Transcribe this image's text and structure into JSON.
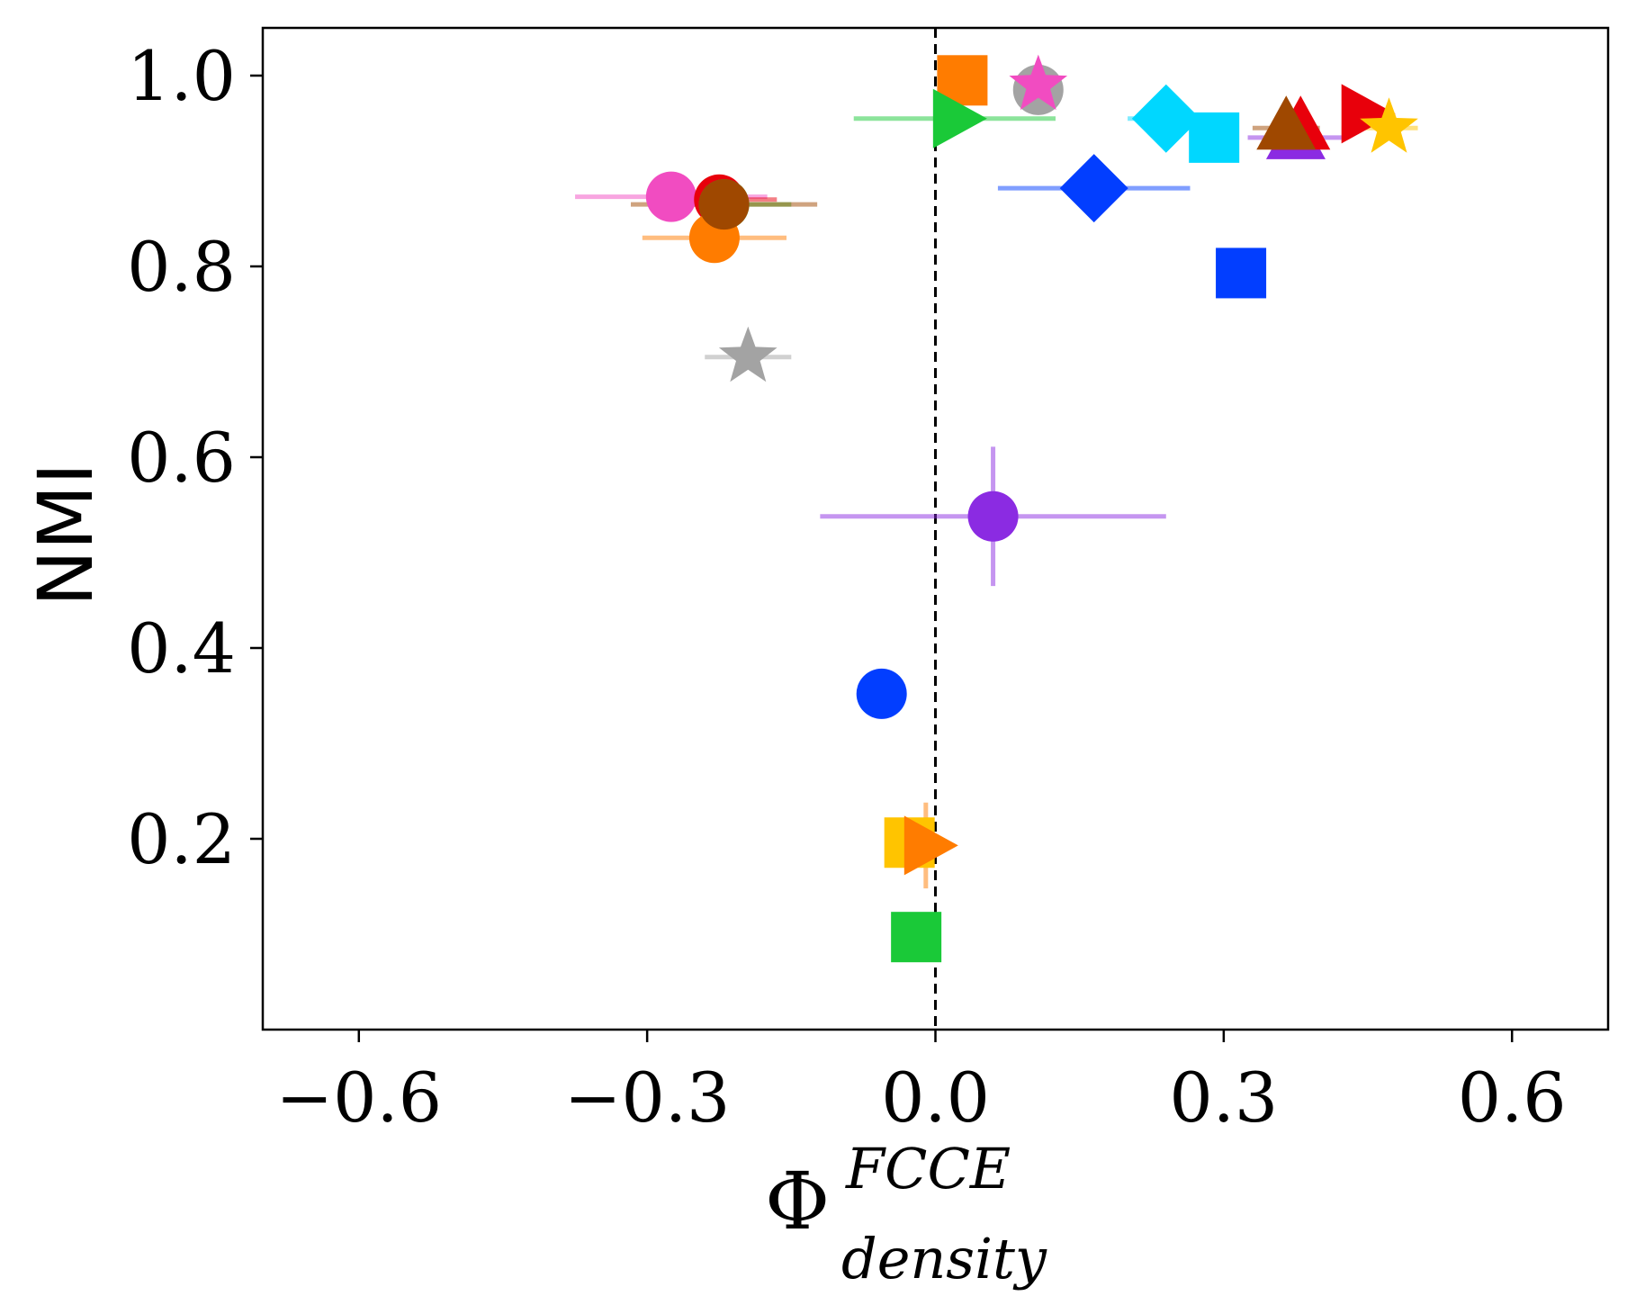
{
  "chart_data": {
    "type": "scatter",
    "title": "",
    "xlabel": {
      "base": "Φ",
      "superscript": "FCCE",
      "subscript": "density"
    },
    "ylabel": "NMI",
    "xlim": [
      -0.7,
      0.7
    ],
    "ylim": [
      0.0,
      1.05
    ],
    "xticks": [
      {
        "value": -0.6,
        "label": "−0.6"
      },
      {
        "value": -0.3,
        "label": "−0.3"
      },
      {
        "value": 0.0,
        "label": "0.0"
      },
      {
        "value": 0.3,
        "label": "0.3"
      },
      {
        "value": 0.6,
        "label": "0.6"
      }
    ],
    "yticks": [
      {
        "value": 0.2,
        "label": "0.2"
      },
      {
        "value": 0.4,
        "label": "0.4"
      },
      {
        "value": 0.6,
        "label": "0.6"
      },
      {
        "value": 0.8,
        "label": "0.8"
      },
      {
        "value": 1.0,
        "label": "1.0"
      }
    ],
    "reference_line": {
      "x": 0.0,
      "style": "dashed"
    },
    "grid": false,
    "points": [
      {
        "marker": "star",
        "color": "#a3a3a3",
        "x": -0.195,
        "y": 0.705,
        "xerr": 0.045,
        "yerr": 0
      },
      {
        "marker": "circle",
        "color": "#f14cc1",
        "x": -0.275,
        "y": 0.873,
        "xerr": 0.1,
        "yerr": 0
      },
      {
        "marker": "circle",
        "color": "#e8000b",
        "x": -0.225,
        "y": 0.87,
        "xerr": 0.06,
        "yerr": 0
      },
      {
        "marker": "circle",
        "color": "#1ac938",
        "x": -0.22,
        "y": 0.865,
        "xerr": 0.07,
        "yerr": 0
      },
      {
        "marker": "circle",
        "color": "#ff7c00",
        "x": -0.23,
        "y": 0.83,
        "xerr": 0.075,
        "yerr": 0
      },
      {
        "marker": "circle",
        "color": "#9f4800",
        "x": -0.22,
        "y": 0.865,
        "xerr": 0.097,
        "yerr": 0
      },
      {
        "marker": "square",
        "color": "#ff7c00",
        "x": 0.028,
        "y": 0.995,
        "xerr": 0,
        "yerr": 0
      },
      {
        "marker": "circle",
        "color": "#a3a3a3",
        "x": 0.107,
        "y": 0.985,
        "xerr": 0,
        "yerr": 0
      },
      {
        "marker": "star",
        "color": "#f14cc1",
        "x": 0.107,
        "y": 0.99,
        "xerr": 0,
        "yerr": 0
      },
      {
        "marker": "triangle-right",
        "color": "#1ac938",
        "x": 0.02,
        "y": 0.955,
        "xerr": 0.105,
        "yerr": 0
      },
      {
        "marker": "diamond",
        "color": "#00d7ff",
        "x": 0.24,
        "y": 0.955,
        "xerr": 0.04,
        "yerr": 0
      },
      {
        "marker": "square",
        "color": "#00d7ff",
        "x": 0.29,
        "y": 0.935,
        "xerr": 0,
        "yerr": 0
      },
      {
        "marker": "triangle-up",
        "color": "#8b2be2",
        "x": 0.375,
        "y": 0.935,
        "xerr": 0.05,
        "yerr": 0
      },
      {
        "marker": "triangle-up",
        "color": "#e8000b",
        "x": 0.38,
        "y": 0.945,
        "xerr": 0,
        "yerr": 0
      },
      {
        "marker": "triangle-up",
        "color": "#9f4800",
        "x": 0.365,
        "y": 0.945,
        "xerr": 0.035,
        "yerr": 0
      },
      {
        "marker": "triangle-right",
        "color": "#e8000b",
        "x": 0.445,
        "y": 0.96,
        "xerr": 0.022,
        "yerr": 0
      },
      {
        "marker": "star",
        "color": "#ffc400",
        "x": 0.472,
        "y": 0.945,
        "xerr": 0.03,
        "yerr": 0
      },
      {
        "marker": "diamond",
        "color": "#023eff",
        "x": 0.165,
        "y": 0.882,
        "xerr": 0.1,
        "yerr": 0
      },
      {
        "marker": "square",
        "color": "#023eff",
        "x": 0.318,
        "y": 0.793,
        "xerr": 0,
        "yerr": 0
      },
      {
        "marker": "circle",
        "color": "#8b2be2",
        "x": 0.06,
        "y": 0.538,
        "xerr": 0.18,
        "yerr": 0.073
      },
      {
        "marker": "circle",
        "color": "#023eff",
        "x": -0.056,
        "y": 0.352,
        "xerr": 0,
        "yerr": 0
      },
      {
        "marker": "square",
        "color": "#ffc400",
        "x": -0.027,
        "y": 0.196,
        "xerr": 0,
        "yerr": 0
      },
      {
        "marker": "triangle-right",
        "color": "#ff7c00",
        "x": -0.01,
        "y": 0.193,
        "xerr": 0,
        "yerr": 0.045
      },
      {
        "marker": "square",
        "color": "#1ac938",
        "x": -0.02,
        "y": 0.097,
        "xerr": 0,
        "yerr": 0
      }
    ]
  }
}
